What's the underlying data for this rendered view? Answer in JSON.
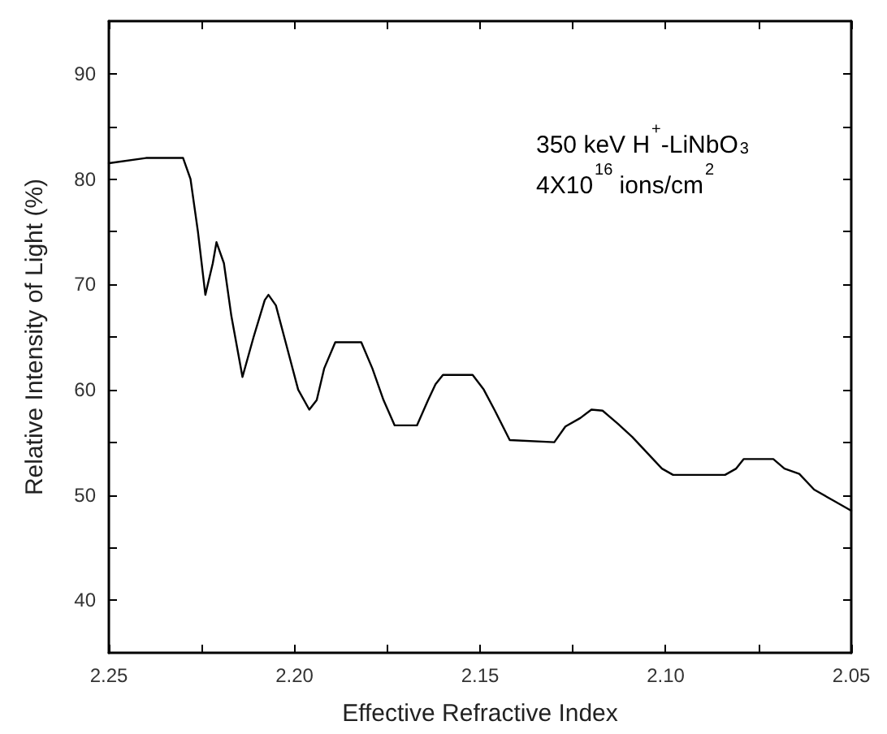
{
  "chart_data": {
    "type": "line",
    "xlabel": "Effective Refractive Index",
    "ylabel": "Relative Intensity of Light (%)",
    "annotations": [
      "350 keV H$^{+}$-LiNbO$_{3}$",
      "4X10$^{16}$ ions/cm$^{2}$"
    ],
    "x": [
      2.25,
      2.24,
      2.23,
      2.228,
      2.226,
      2.224,
      2.222,
      2.221,
      2.219,
      2.217,
      2.214,
      2.211,
      2.208,
      2.207,
      2.205,
      2.202,
      2.199,
      2.196,
      2.194,
      2.192,
      2.189,
      2.182,
      2.179,
      2.176,
      2.173,
      2.167,
      2.164,
      2.162,
      2.16,
      2.152,
      2.149,
      2.146,
      2.142,
      2.13,
      2.127,
      2.123,
      2.12,
      2.117,
      2.113,
      2.109,
      2.105,
      2.101,
      2.098,
      2.084,
      2.081,
      2.079,
      2.071,
      2.068,
      2.064,
      2.06,
      2.055,
      2.05
    ],
    "series": [
      {
        "color": "#000000",
        "values": [
          81.5,
          82,
          82,
          80,
          75,
          69,
          72,
          74,
          72,
          67,
          61.2,
          65,
          68.5,
          69,
          68,
          64,
          60,
          58.1,
          59,
          62,
          64.5,
          64.5,
          62,
          59,
          56.6,
          56.6,
          59,
          60.5,
          61.4,
          61.4,
          60,
          58,
          55.2,
          55,
          56.5,
          57.3,
          58.1,
          58,
          56.8,
          55.5,
          54,
          52.5,
          51.9,
          51.9,
          52.5,
          53.4,
          53.4,
          52.5,
          52,
          50.5,
          49.5,
          48.5
        ]
      }
    ],
    "xlim": [
      2.25,
      2.05
    ],
    "xticks": [
      {
        "value": 2.25,
        "label": "2.25"
      },
      {
        "value": 2.225,
        "label": null
      },
      {
        "value": 2.2,
        "label": "2.20"
      },
      {
        "value": 2.175,
        "label": null
      },
      {
        "value": 2.15,
        "label": "2.15"
      },
      {
        "value": 2.125,
        "label": null
      },
      {
        "value": 2.1,
        "label": "2.10"
      },
      {
        "value": 2.075,
        "label": null
      },
      {
        "value": 2.05,
        "label": "2.05"
      }
    ],
    "ylim": [
      35,
      95
    ],
    "yticks": [
      40,
      {
        "value": 45,
        "label": null
      },
      50,
      {
        "value": 55,
        "label": null
      },
      60,
      {
        "value": 65,
        "label": null
      },
      70,
      {
        "value": 75,
        "label": null
      },
      80,
      {
        "value": 85,
        "label": null
      },
      90
    ],
    "marker": "none",
    "line_style": "solid"
  }
}
